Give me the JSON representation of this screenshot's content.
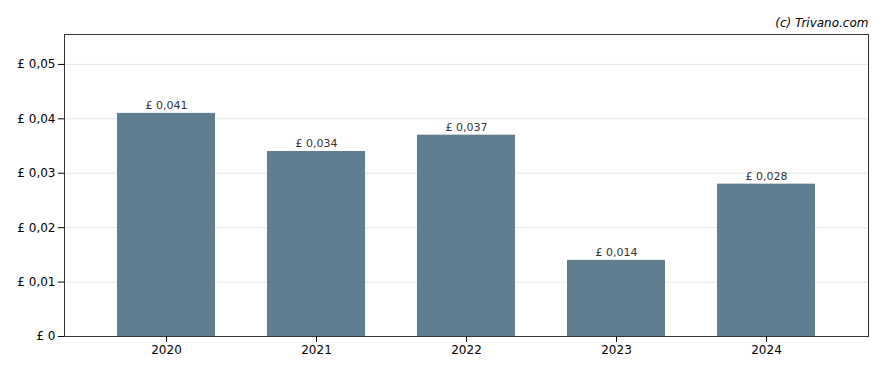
{
  "chart_data": {
    "type": "bar",
    "categories": [
      "2020",
      "2021",
      "2022",
      "2023",
      "2024"
    ],
    "values": [
      0.041,
      0.034,
      0.037,
      0.014,
      0.028
    ],
    "value_labels": [
      "£ 0,041",
      "£ 0,034",
      "£ 0,037",
      "£ 0,014",
      "£ 0,028"
    ],
    "data_labels": true,
    "color": "#5f7f90",
    "ylim": [
      0,
      0.0555
    ],
    "yticks": [
      {
        "value": 0,
        "label": "£ 0"
      },
      {
        "value": 0.01,
        "label": "£ 0,01"
      },
      {
        "value": 0.02,
        "label": "£ 0,02"
      },
      {
        "value": 0.03,
        "label": "£ 0,03"
      },
      {
        "value": 0.04,
        "label": "£ 0,04"
      },
      {
        "value": 0.05,
        "label": "£ 0,05"
      }
    ],
    "grid": true,
    "annotations": [
      "(c) Trivano.com"
    ]
  }
}
